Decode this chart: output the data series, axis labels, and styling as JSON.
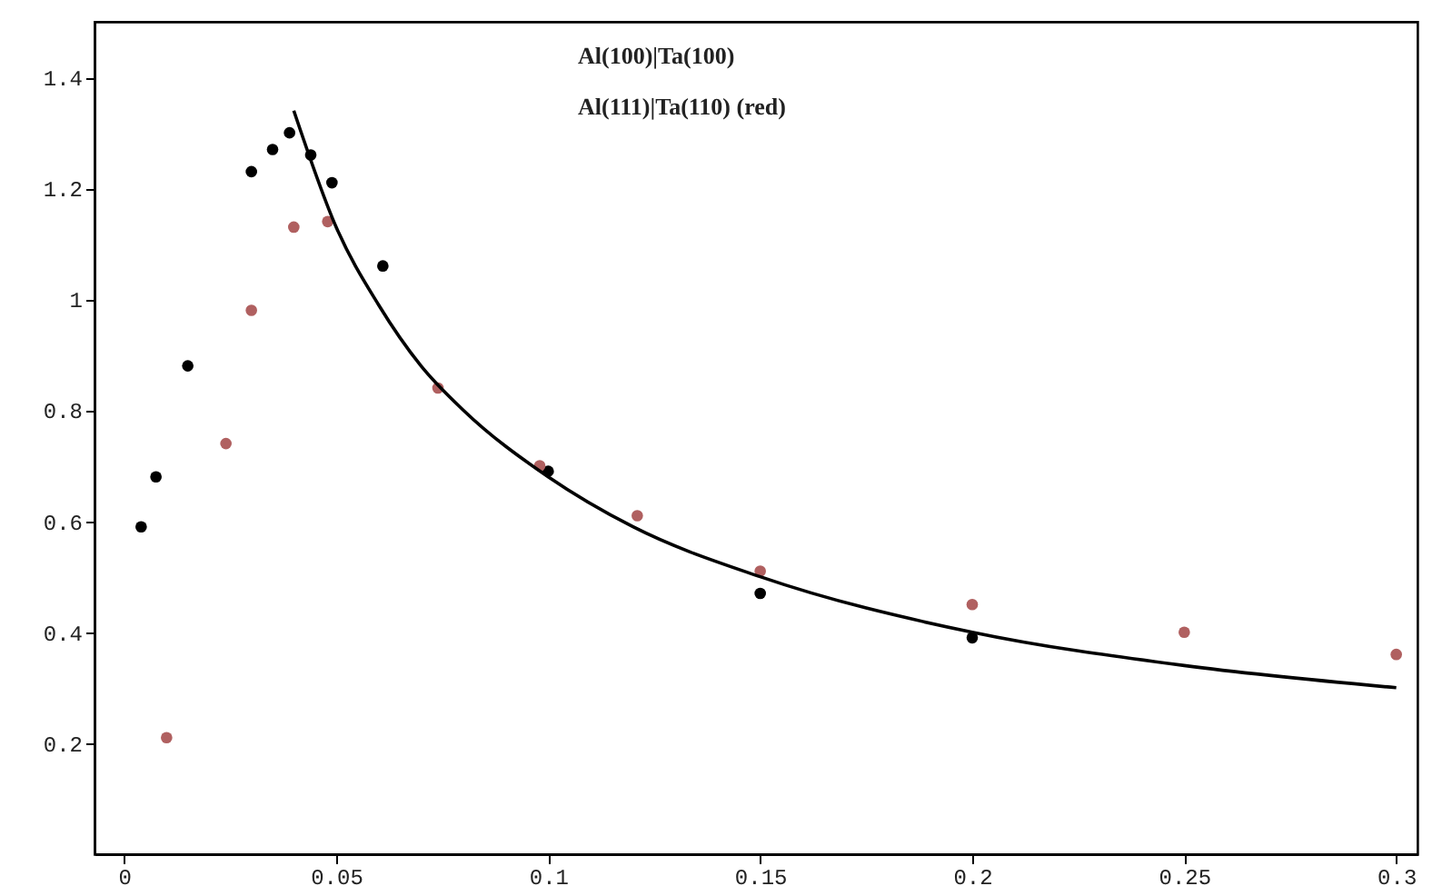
{
  "chart_data": {
    "type": "scatter",
    "annotations": [
      "Al(100)|Ta(100)",
      "Al(111)|Ta(110)  (red)"
    ],
    "xlim": [
      -0.007,
      0.305
    ],
    "ylim": [
      0,
      1.5
    ],
    "xticks": [
      0,
      0.05,
      0.1,
      0.15,
      0.2,
      0.25,
      0.3
    ],
    "yticks": [
      0.2,
      0.4,
      0.6,
      0.8,
      1,
      1.2,
      1.4
    ],
    "grid": false,
    "series": [
      {
        "color": "#000000",
        "x": [
          0.004,
          0.0075,
          0.015,
          0.03,
          0.035,
          0.039,
          0.044,
          0.049,
          0.061,
          0.1,
          0.15,
          0.2
        ],
        "values": [
          0.59,
          0.68,
          0.88,
          1.23,
          1.27,
          1.3,
          1.26,
          1.21,
          1.06,
          0.69,
          0.47,
          0.39
        ]
      },
      {
        "color": "#b06060",
        "x": [
          0.01,
          0.024,
          0.03,
          0.04,
          0.048,
          0.074,
          0.098,
          0.121,
          0.15,
          0.2,
          0.25,
          0.3
        ],
        "values": [
          0.21,
          0.74,
          0.98,
          1.13,
          1.14,
          0.84,
          0.7,
          0.61,
          0.51,
          0.45,
          0.4,
          0.36
        ]
      },
      {
        "type": "line",
        "color": "#000000",
        "marker": "none",
        "x": [
          0.04,
          0.05,
          0.06,
          0.07,
          0.08,
          0.1,
          0.12,
          0.15,
          0.2,
          0.25,
          0.3
        ],
        "values": [
          1.34,
          1.13,
          0.99,
          0.88,
          0.8,
          0.68,
          0.59,
          0.5,
          0.4,
          0.34,
          0.3
        ]
      }
    ]
  }
}
